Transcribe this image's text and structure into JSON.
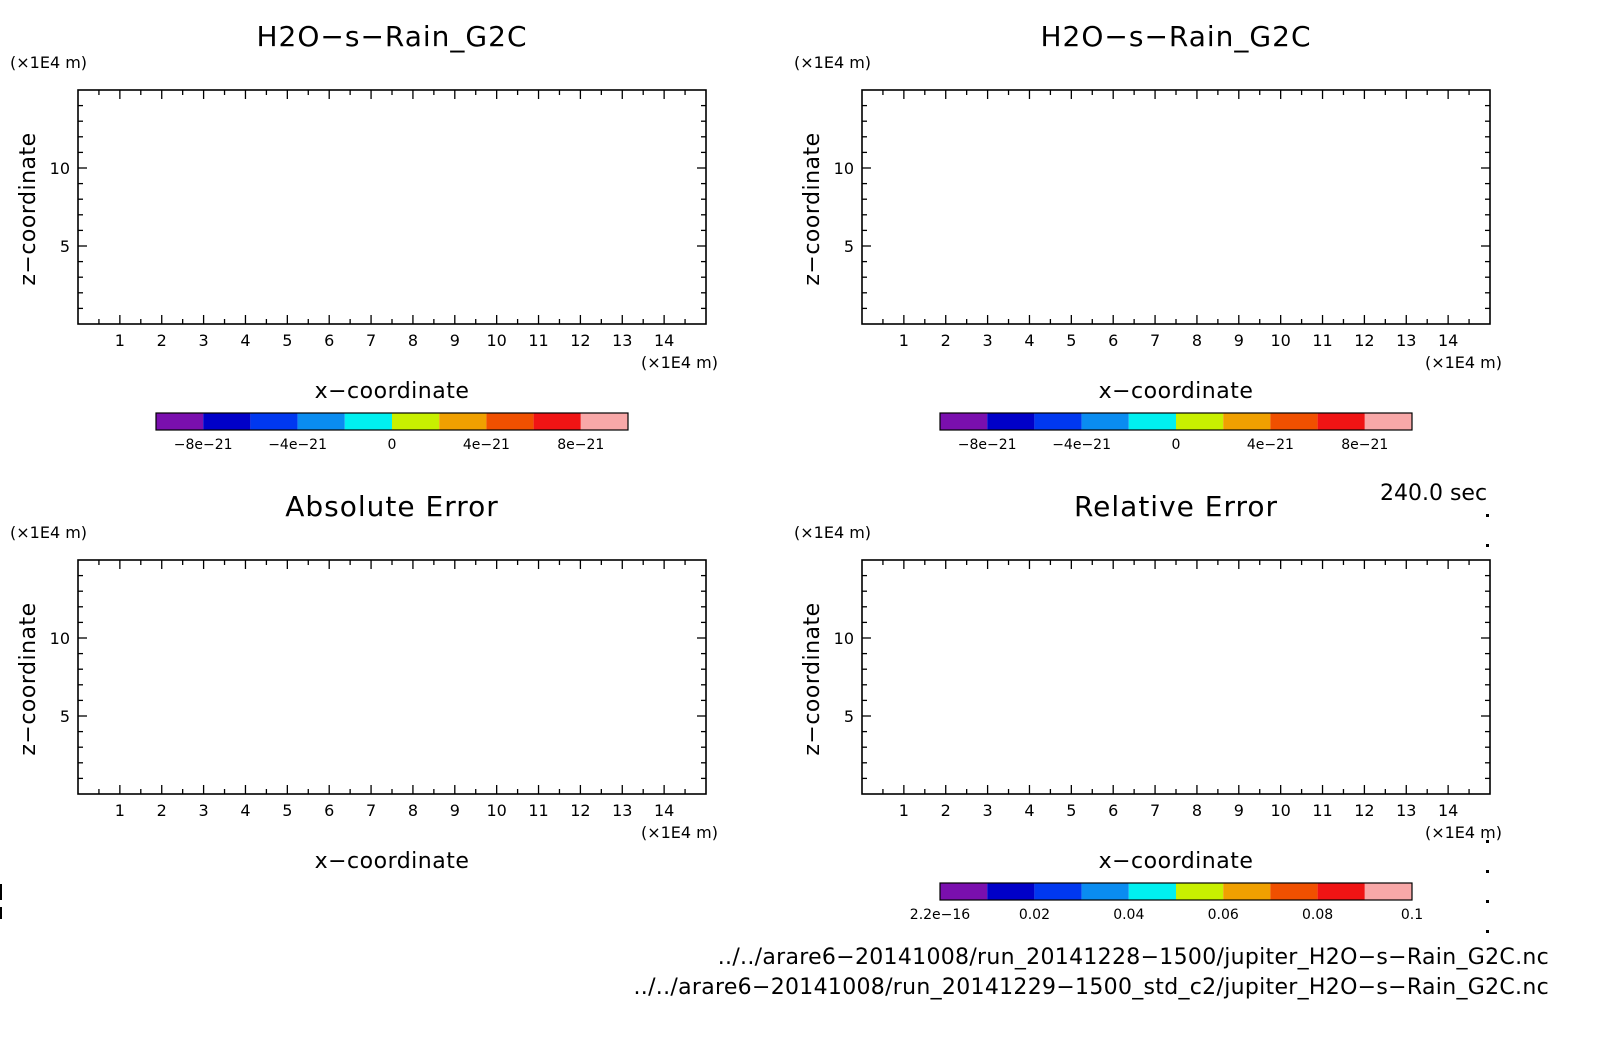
{
  "panels": [
    {
      "title": "H2O−s−Rain_G2C",
      "y_unit": "(×1E4 m)",
      "x_unit": "(×1E4 m)",
      "xlabel": "x−coordinate",
      "ylabel": "z−coordinate",
      "colorbar": true,
      "colorbar_labels": [
        "−8e−21",
        "−4e−21",
        "0",
        "4e−21",
        "8e−21"
      ]
    },
    {
      "title": "H2O−s−Rain_G2C",
      "y_unit": "(×1E4 m)",
      "x_unit": "(×1E4 m)",
      "xlabel": "x−coordinate",
      "ylabel": "z−coordinate",
      "colorbar": true,
      "colorbar_labels": [
        "−8e−21",
        "−4e−21",
        "0",
        "4e−21",
        "8e−21"
      ]
    },
    {
      "title": "Absolute Error",
      "y_unit": "(×1E4 m)",
      "x_unit": "(×1E4 m)",
      "xlabel": "x−coordinate",
      "ylabel": "z−coordinate",
      "colorbar": false,
      "colorbar_labels": []
    },
    {
      "title": "Relative Error",
      "y_unit": "(×1E4 m)",
      "x_unit": "(×1E4 m)",
      "xlabel": "x−coordinate",
      "ylabel": "z−coordinate",
      "colorbar": true,
      "colorbar_labels": [
        "2.2e−16",
        "0.02",
        "0.04",
        "0.06",
        "0.08",
        "0.1"
      ]
    }
  ],
  "time_label": "240.0 sec",
  "file_paths": [
    "../../arare6−20141008/run_20141228−1500/jupiter_H2O−s−Rain_G2C.nc",
    "../../arare6−20141008/run_20141229−1500_std_c2/jupiter_H2O−s−Rain_G2C.nc"
  ],
  "colorbar_colors": [
    "#7a0fae",
    "#0000c8",
    "#0038f0",
    "#0a8cf0",
    "#00f0f0",
    "#c8f000",
    "#f0a000",
    "#f05000",
    "#f01414",
    "#f8a8a8"
  ],
  "chart_data": [
    {
      "type": "heatmap",
      "title": "H2O−s−Rain_G2C",
      "xlabel": "x−coordinate",
      "ylabel": "z−coordinate",
      "xlim": [
        0,
        15
      ],
      "ylim": [
        0,
        15
      ],
      "x_ticks": [
        1,
        2,
        3,
        4,
        5,
        6,
        7,
        8,
        9,
        10,
        11,
        12,
        13,
        14
      ],
      "y_ticks": [
        5,
        10
      ],
      "colorbar": {
        "min": -1e-20,
        "max": 1e-20,
        "labels": [
          "−8e−21",
          "−4e−21",
          "0",
          "4e−21",
          "8e−21"
        ]
      },
      "values": []
    },
    {
      "type": "heatmap",
      "title": "H2O−s−Rain_G2C",
      "xlabel": "x−coordinate",
      "ylabel": "z−coordinate",
      "xlim": [
        0,
        15
      ],
      "ylim": [
        0,
        15
      ],
      "x_ticks": [
        1,
        2,
        3,
        4,
        5,
        6,
        7,
        8,
        9,
        10,
        11,
        12,
        13,
        14
      ],
      "y_ticks": [
        5,
        10
      ],
      "colorbar": {
        "min": -1e-20,
        "max": 1e-20,
        "labels": [
          "−8e−21",
          "−4e−21",
          "0",
          "4e−21",
          "8e−21"
        ]
      },
      "values": []
    },
    {
      "type": "heatmap",
      "title": "Absolute Error",
      "xlabel": "x−coordinate",
      "ylabel": "z−coordinate",
      "xlim": [
        0,
        15
      ],
      "ylim": [
        0,
        15
      ],
      "x_ticks": [
        1,
        2,
        3,
        4,
        5,
        6,
        7,
        8,
        9,
        10,
        11,
        12,
        13,
        14
      ],
      "y_ticks": [
        5,
        10
      ],
      "values": []
    },
    {
      "type": "heatmap",
      "title": "Relative Error",
      "xlabel": "x−coordinate",
      "ylabel": "z−coordinate",
      "xlim": [
        0,
        15
      ],
      "ylim": [
        0,
        15
      ],
      "x_ticks": [
        1,
        2,
        3,
        4,
        5,
        6,
        7,
        8,
        9,
        10,
        11,
        12,
        13,
        14
      ],
      "y_ticks": [
        5,
        10
      ],
      "colorbar": {
        "min": 2.2e-16,
        "max": 0.1,
        "labels": [
          "2.2e−16",
          "0.02",
          "0.04",
          "0.06",
          "0.08",
          "0.1"
        ]
      },
      "values": []
    }
  ]
}
